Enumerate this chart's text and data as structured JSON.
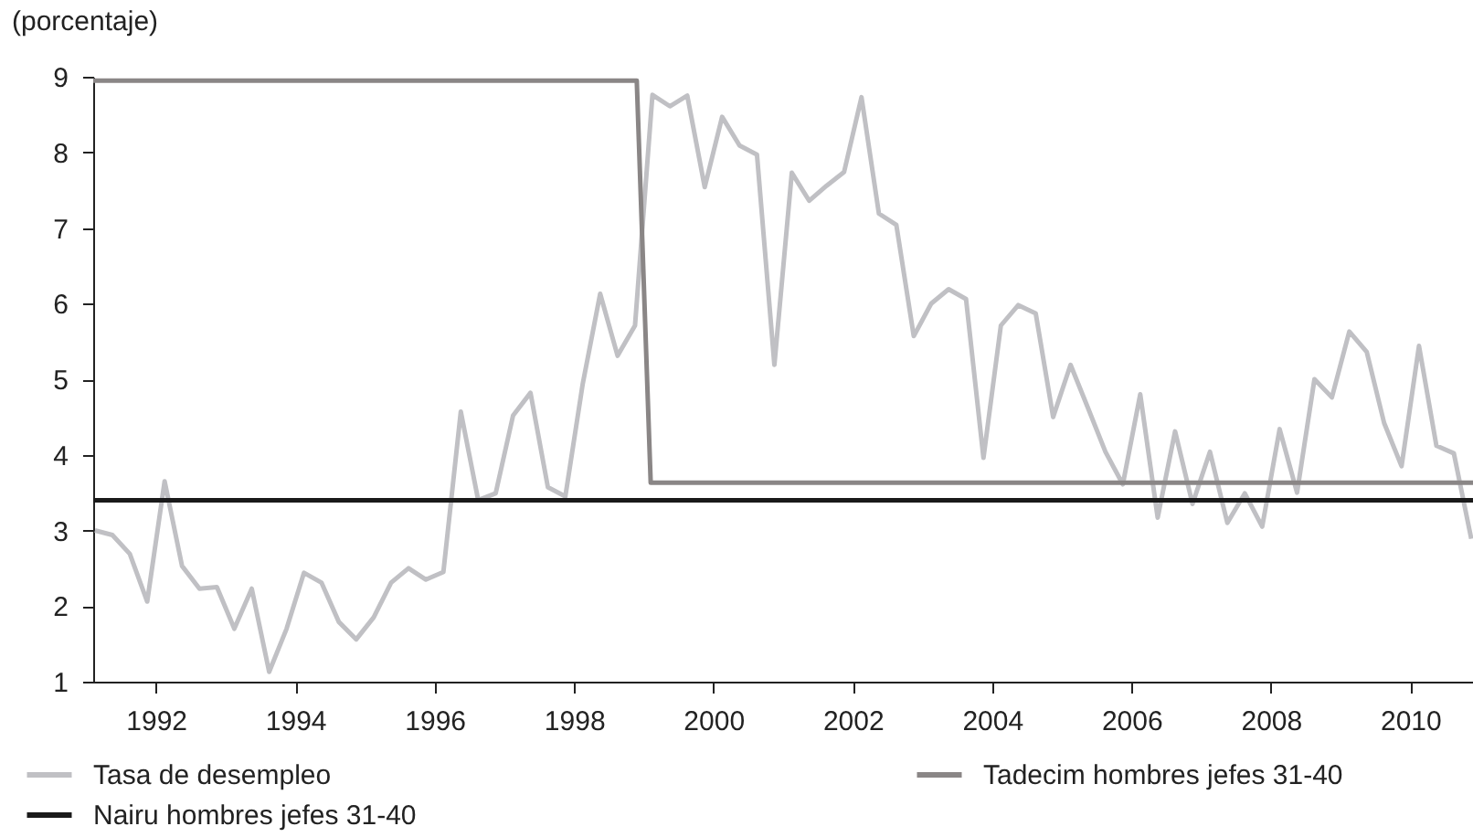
{
  "chart_data": {
    "type": "line",
    "ylabel": "(porcentaje)",
    "x": [
      1991.125,
      1991.375,
      1991.625,
      1991.875,
      1992.125,
      1992.375,
      1992.625,
      1992.875,
      1993.125,
      1993.375,
      1993.625,
      1993.875,
      1994.125,
      1994.375,
      1994.625,
      1994.875,
      1995.125,
      1995.375,
      1995.625,
      1995.875,
      1996.125,
      1996.375,
      1996.625,
      1996.875,
      1997.125,
      1997.375,
      1997.625,
      1997.875,
      1998.125,
      1998.375,
      1998.625,
      1998.875,
      1999.125,
      1999.375,
      1999.625,
      1999.875,
      2000.125,
      2000.375,
      2000.625,
      2000.875,
      2001.125,
      2001.375,
      2001.625,
      2001.875,
      2002.125,
      2002.375,
      2002.625,
      2002.875,
      2003.125,
      2003.375,
      2003.625,
      2003.875,
      2004.125,
      2004.375,
      2004.625,
      2004.875,
      2005.125,
      2005.375,
      2005.625,
      2005.875,
      2006.125,
      2006.375,
      2006.625,
      2006.875,
      2007.125,
      2007.375,
      2007.625,
      2007.875,
      2008.125,
      2008.375,
      2008.625,
      2008.875,
      2009.125,
      2009.375,
      2009.625,
      2009.875,
      2010.125,
      2010.375,
      2010.625,
      2010.875
    ],
    "series": [
      {
        "name": "Tasa de desempleo",
        "color": "#c0c0c4",
        "values": [
          3.0,
          2.94,
          2.69,
          2.06,
          3.65,
          2.53,
          2.23,
          2.25,
          1.7,
          2.23,
          1.13,
          1.7,
          2.44,
          2.31,
          1.79,
          1.56,
          1.85,
          2.31,
          2.5,
          2.35,
          2.45,
          4.57,
          3.4,
          3.49,
          4.52,
          4.82,
          3.57,
          3.45,
          4.94,
          6.13,
          5.31,
          5.71,
          8.76,
          8.61,
          8.75,
          7.54,
          8.47,
          8.09,
          7.97,
          5.19,
          7.73,
          7.36,
          7.56,
          7.74,
          8.73,
          7.19,
          7.04,
          5.57,
          6.0,
          6.19,
          6.06,
          3.96,
          5.71,
          5.98,
          5.87,
          4.5,
          5.19,
          4.62,
          4.04,
          3.61,
          4.8,
          3.17,
          4.31,
          3.35,
          4.04,
          3.1,
          3.49,
          3.05,
          4.34,
          3.5,
          5.0,
          4.76,
          5.63,
          5.36,
          4.42,
          3.85,
          5.44,
          4.12,
          4.02,
          2.89
        ]
      },
      {
        "name": "Tadecim hombres jefes 31-40",
        "color": "#8a8686",
        "x": [
          1991.1,
          1998.9,
          1999.1,
          2010.9
        ],
        "values": [
          8.95,
          8.95,
          3.63,
          3.63
        ]
      },
      {
        "name": "Nairu hombres jefes 31-40",
        "color": "#1a1a1a",
        "x": [
          1991.1,
          2010.9
        ],
        "values": [
          3.4,
          3.4
        ]
      }
    ],
    "xlim": [
      1991.1,
      2010.9
    ],
    "xticks": [
      1992,
      1994,
      1996,
      1998,
      2000,
      2002,
      2004,
      2006,
      2008,
      2010
    ],
    "ylim": [
      1,
      9
    ],
    "yticks": [
      1,
      2,
      3,
      4,
      5,
      6,
      7,
      8,
      9
    ],
    "grid": false,
    "legend": "bottom",
    "line_style": "solid"
  }
}
